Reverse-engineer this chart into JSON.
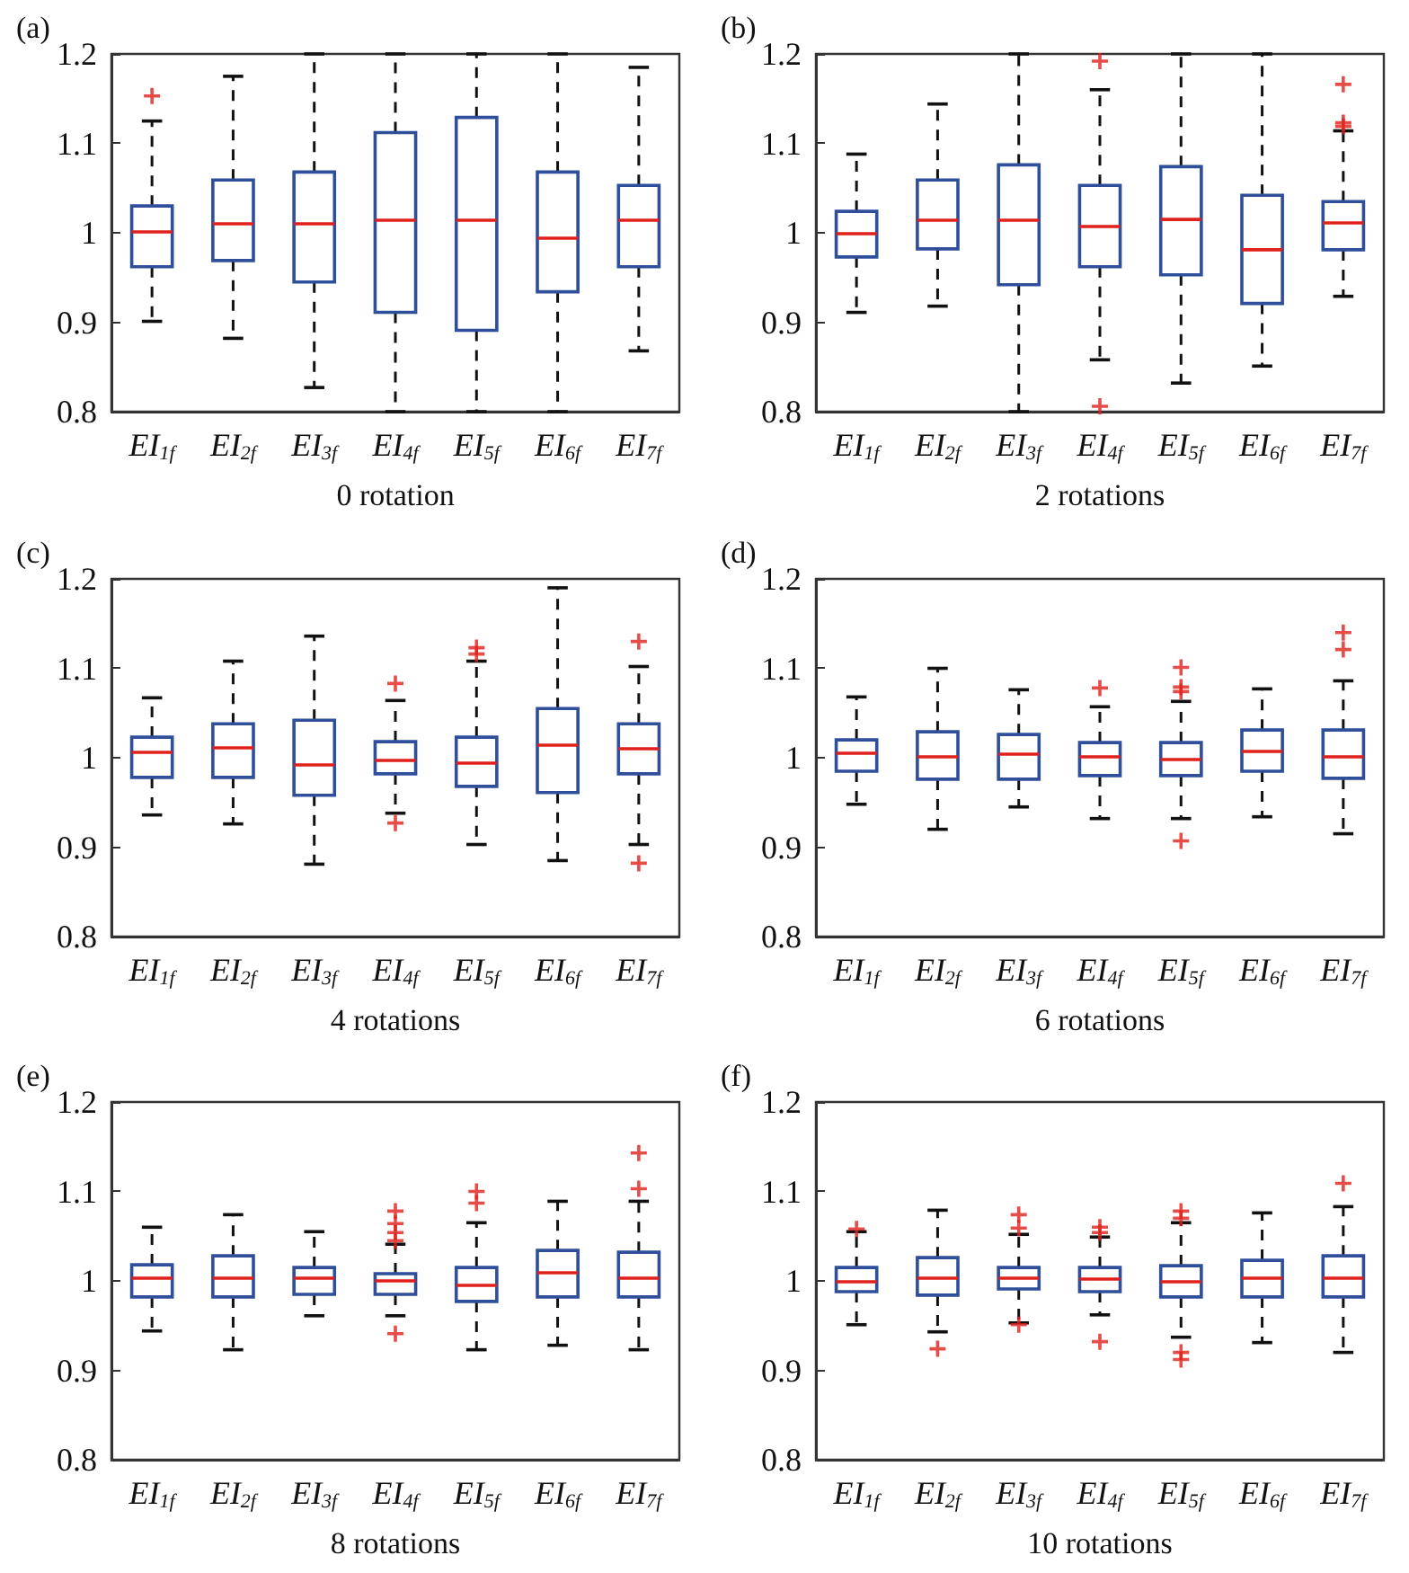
{
  "chart_data": [
    {
      "type": "box",
      "title": "(a)",
      "xlabel": "0 rotation",
      "categories": [
        "EI$_{1f}$",
        "EI$_{2f}$",
        "EI$_{3f}$",
        "EI$_{4f}$",
        "EI$_{5f}$",
        "EI$_{6f}$",
        "EI$_{7f}$"
      ],
      "ylim": [
        0.8,
        1.2
      ],
      "yticks": [
        0.8,
        0.9,
        1,
        1.1,
        1.2
      ],
      "series": [
        {
          "color": "#2f4f9a",
          "boxes": [
            {
              "low": 0.901,
              "q1": 0.962,
              "median": 1.001,
              "q3": 1.03,
              "high": 1.125,
              "outliers": [
                1.153
              ]
            },
            {
              "low": 0.882,
              "q1": 0.969,
              "median": 1.01,
              "q3": 1.059,
              "high": 1.175
            },
            {
              "low": 0.827,
              "q1": 0.945,
              "median": 1.01,
              "q3": 1.068,
              "high": 1.2
            },
            {
              "low": 0.8,
              "q1": 0.911,
              "median": 1.014,
              "q3": 1.112,
              "high": 1.2
            },
            {
              "low": 0.8,
              "q1": 0.891,
              "median": 1.014,
              "q3": 1.129,
              "high": 1.2
            },
            {
              "low": 0.8,
              "q1": 0.934,
              "median": 0.994,
              "q3": 1.068,
              "high": 1.2
            },
            {
              "low": 0.868,
              "q1": 0.962,
              "median": 1.014,
              "q3": 1.053,
              "high": 1.185
            }
          ]
        }
      ]
    },
    {
      "type": "box",
      "title": "(b)",
      "xlabel": "2 rotations",
      "categories": [
        "EI$_{1f}$",
        "EI$_{2f}$",
        "EI$_{3f}$",
        "EI$_{4f}$",
        "EI$_{5f}$",
        "EI$_{6f}$",
        "EI$_{7f}$"
      ],
      "ylim": [
        0.8,
        1.2
      ],
      "yticks": [
        0.8,
        0.9,
        1,
        1.1,
        1.2
      ],
      "series": [
        {
          "color": "#2f4f9a",
          "boxes": [
            {
              "low": 0.911,
              "q1": 0.973,
              "median": 0.999,
              "q3": 1.024,
              "high": 1.088
            },
            {
              "low": 0.918,
              "q1": 0.982,
              "median": 1.014,
              "q3": 1.059,
              "high": 1.144
            },
            {
              "low": 0.8,
              "q1": 0.942,
              "median": 1.014,
              "q3": 1.076,
              "high": 1.2
            },
            {
              "low": 0.858,
              "q1": 0.962,
              "median": 1.007,
              "q3": 1.053,
              "high": 1.16,
              "outliers": [
                1.192,
                0.806
              ]
            },
            {
              "low": 0.832,
              "q1": 0.953,
              "median": 1.015,
              "q3": 1.074,
              "high": 1.2
            },
            {
              "low": 0.851,
              "q1": 0.921,
              "median": 0.981,
              "q3": 1.042,
              "high": 1.2
            },
            {
              "low": 0.929,
              "q1": 0.981,
              "median": 1.011,
              "q3": 1.035,
              "high": 1.114,
              "outliers": [
                1.166,
                1.123,
                1.119
              ]
            }
          ]
        }
      ]
    },
    {
      "type": "box",
      "title": "(c)",
      "xlabel": "4 rotations",
      "categories": [
        "EI$_{1f}$",
        "EI$_{2f}$",
        "EI$_{3f}$",
        "EI$_{4f}$",
        "EI$_{5f}$",
        "EI$_{6f}$",
        "EI$_{7f}$"
      ],
      "ylim": [
        0.8,
        1.2
      ],
      "yticks": [
        0.8,
        0.9,
        1,
        1.1,
        1.2
      ],
      "series": [
        {
          "color": "#2f4f9a",
          "boxes": [
            {
              "low": 0.936,
              "q1": 0.978,
              "median": 1.006,
              "q3": 1.023,
              "high": 1.067
            },
            {
              "low": 0.926,
              "q1": 0.978,
              "median": 1.011,
              "q3": 1.038,
              "high": 1.108
            },
            {
              "low": 0.881,
              "q1": 0.958,
              "median": 0.992,
              "q3": 1.042,
              "high": 1.136
            },
            {
              "low": 0.938,
              "q1": 0.982,
              "median": 0.997,
              "q3": 1.018,
              "high": 1.064,
              "outliers": [
                1.083,
                0.927
              ]
            },
            {
              "low": 0.903,
              "q1": 0.968,
              "median": 0.994,
              "q3": 1.023,
              "high": 1.108,
              "outliers": [
                1.123,
                1.116
              ]
            },
            {
              "low": 0.885,
              "q1": 0.961,
              "median": 1.014,
              "q3": 1.055,
              "high": 1.19
            },
            {
              "low": 0.903,
              "q1": 0.982,
              "median": 1.01,
              "q3": 1.038,
              "high": 1.102,
              "outliers": [
                1.13,
                0.882
              ]
            }
          ]
        }
      ]
    },
    {
      "type": "box",
      "title": "(d)",
      "xlabel": "6 rotations",
      "categories": [
        "EI$_{1f}$",
        "EI$_{2f}$",
        "EI$_{3f}$",
        "EI$_{4f}$",
        "EI$_{5f}$",
        "EI$_{6f}$",
        "EI$_{7f}$"
      ],
      "ylim": [
        0.8,
        1.2
      ],
      "yticks": [
        0.8,
        0.9,
        1,
        1.1,
        1.2
      ],
      "series": [
        {
          "color": "#2f4f9a",
          "boxes": [
            {
              "low": 0.948,
              "q1": 0.985,
              "median": 1.005,
              "q3": 1.02,
              "high": 1.068
            },
            {
              "low": 0.92,
              "q1": 0.976,
              "median": 1.001,
              "q3": 1.029,
              "high": 1.1
            },
            {
              "low": 0.945,
              "q1": 0.976,
              "median": 1.004,
              "q3": 1.026,
              "high": 1.076
            },
            {
              "low": 0.932,
              "q1": 0.98,
              "median": 1.001,
              "q3": 1.017,
              "high": 1.057,
              "outliers": [
                1.078
              ]
            },
            {
              "low": 0.932,
              "q1": 0.98,
              "median": 0.998,
              "q3": 1.017,
              "high": 1.063,
              "outliers": [
                1.101,
                1.079,
                1.074,
                0.907
              ]
            },
            {
              "low": 0.934,
              "q1": 0.985,
              "median": 1.007,
              "q3": 1.031,
              "high": 1.077
            },
            {
              "low": 0.915,
              "q1": 0.977,
              "median": 1.001,
              "q3": 1.031,
              "high": 1.086,
              "outliers": [
                1.14,
                1.121
              ]
            }
          ]
        }
      ]
    },
    {
      "type": "box",
      "title": "(e)",
      "xlabel": "8 rotations",
      "categories": [
        "EI$_{1f}$",
        "EI$_{2f}$",
        "EI$_{3f}$",
        "EI$_{4f}$",
        "EI$_{5f}$",
        "EI$_{6f}$",
        "EI$_{7f}$"
      ],
      "ylim": [
        0.8,
        1.2
      ],
      "yticks": [
        0.8,
        0.9,
        1,
        1.1,
        1.2
      ],
      "series": [
        {
          "color": "#2f4f9a",
          "boxes": [
            {
              "low": 0.944,
              "q1": 0.982,
              "median": 1.003,
              "q3": 1.018,
              "high": 1.06
            },
            {
              "low": 0.923,
              "q1": 0.982,
              "median": 1.003,
              "q3": 1.028,
              "high": 1.074
            },
            {
              "low": 0.961,
              "q1": 0.985,
              "median": 1.003,
              "q3": 1.015,
              "high": 1.055
            },
            {
              "low": 0.961,
              "q1": 0.985,
              "median": 1,
              "q3": 1.008,
              "high": 1.041,
              "outliers": [
                1.078,
                1.064,
                1.054,
                1.045,
                0.941
              ]
            },
            {
              "low": 0.923,
              "q1": 0.977,
              "median": 0.995,
              "q3": 1.015,
              "high": 1.065,
              "outliers": [
                1.1,
                1.087
              ]
            },
            {
              "low": 0.928,
              "q1": 0.982,
              "median": 1.009,
              "q3": 1.034,
              "high": 1.089
            },
            {
              "low": 0.923,
              "q1": 0.982,
              "median": 1.003,
              "q3": 1.032,
              "high": 1.089,
              "outliers": [
                1.143,
                1.103
              ]
            }
          ]
        }
      ]
    },
    {
      "type": "box",
      "title": "(f)",
      "xlabel": "10 rotations",
      "categories": [
        "EI$_{1f}$",
        "EI$_{2f}$",
        "EI$_{3f}$",
        "EI$_{4f}$",
        "EI$_{5f}$",
        "EI$_{6f}$",
        "EI$_{7f}$"
      ],
      "ylim": [
        0.8,
        1.2
      ],
      "yticks": [
        0.8,
        0.9,
        1,
        1.1,
        1.2
      ],
      "series": [
        {
          "color": "#2f4f9a",
          "boxes": [
            {
              "low": 0.951,
              "q1": 0.988,
              "median": 0.999,
              "q3": 1.015,
              "high": 1.055,
              "outliers": [
                1.058
              ]
            },
            {
              "low": 0.943,
              "q1": 0.984,
              "median": 1.003,
              "q3": 1.026,
              "high": 1.079,
              "outliers": [
                0.924
              ]
            },
            {
              "low": 0.953,
              "q1": 0.991,
              "median": 1.003,
              "q3": 1.015,
              "high": 1.052,
              "outliers": [
                1.074,
                1.059,
                0.951
              ]
            },
            {
              "low": 0.962,
              "q1": 0.988,
              "median": 1.002,
              "q3": 1.015,
              "high": 1.049,
              "outliers": [
                1.06,
                1.054,
                0.932
              ]
            },
            {
              "low": 0.937,
              "q1": 0.982,
              "median": 0.999,
              "q3": 1.017,
              "high": 1.065,
              "outliers": [
                1.078,
                1.07,
                0.92,
                0.912
              ]
            },
            {
              "low": 0.931,
              "q1": 0.982,
              "median": 1.003,
              "q3": 1.023,
              "high": 1.076
            },
            {
              "low": 0.92,
              "q1": 0.982,
              "median": 1.003,
              "q3": 1.028,
              "high": 1.083,
              "outliers": [
                1.109
              ]
            }
          ]
        }
      ]
    }
  ]
}
